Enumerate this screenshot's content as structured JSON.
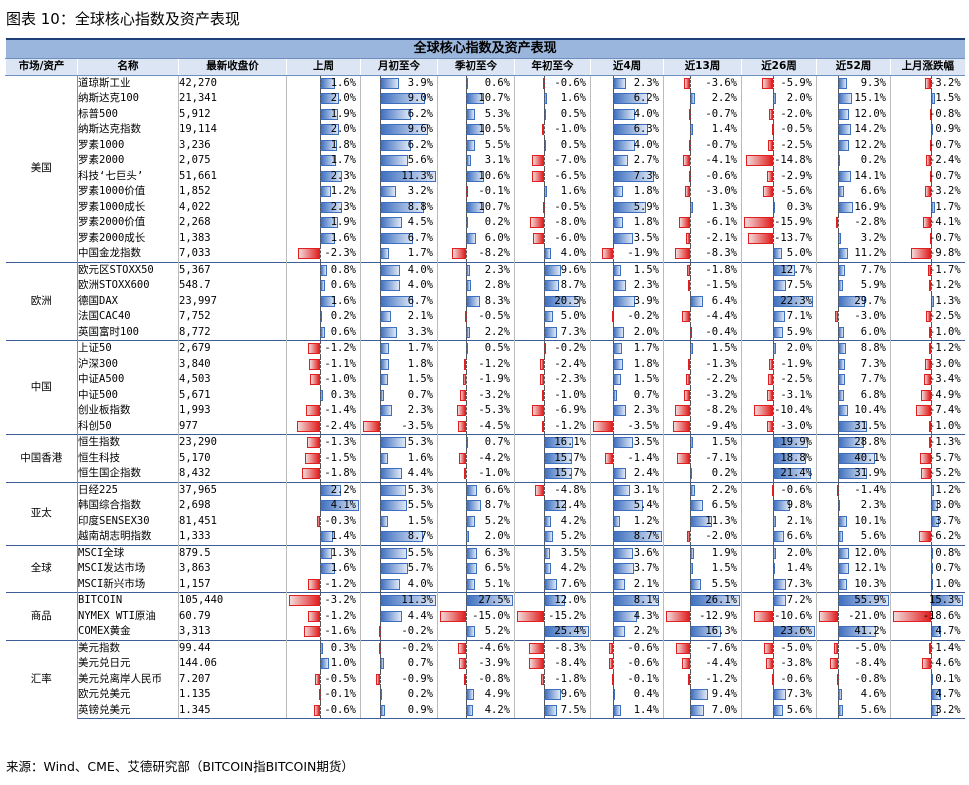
{
  "caption": "图表 10：全球核心指数及资产表现",
  "table_title": "全球核心指数及资产表现",
  "headers": [
    "市场/资产",
    "名称",
    "最新收盘价",
    "上周",
    "月初至今",
    "季初至今",
    "年初至今",
    "近4周",
    "近13周",
    "近26周",
    "近52周",
    "上月涨跌幅"
  ],
  "groups": [
    {
      "region": "美国",
      "rows": [
        {
          "name": "道琼斯工业",
          "close": "42,270",
          "v": [
            "1.6%",
            "3.9%",
            "0.6%",
            "-0.6%",
            "2.3%",
            "-3.6%",
            "-5.9%",
            "9.3%",
            "-3.2%"
          ]
        },
        {
          "name": "纳斯达克100",
          "close": "21,341",
          "v": [
            "2.0%",
            "9.0%",
            "10.7%",
            "1.6%",
            "6.2%",
            "2.2%",
            "2.0%",
            "15.1%",
            "1.5%"
          ]
        },
        {
          "name": "标普500",
          "close": "5,912",
          "v": [
            "1.9%",
            "6.2%",
            "5.3%",
            "0.5%",
            "4.0%",
            "-0.7%",
            "-2.0%",
            "12.0%",
            "-0.8%"
          ]
        },
        {
          "name": "纳斯达克指数",
          "close": "19,114",
          "v": [
            "2.0%",
            "9.6%",
            "10.5%",
            "-1.0%",
            "6.3%",
            "1.4%",
            "-0.5%",
            "14.2%",
            "0.9%"
          ]
        },
        {
          "name": "罗素1000",
          "close": "3,236",
          "v": [
            "1.8%",
            "6.2%",
            "5.5%",
            "0.5%",
            "4.0%",
            "-0.7%",
            "-2.5%",
            "12.2%",
            "-0.7%"
          ]
        },
        {
          "name": "罗素2000",
          "close": "2,075",
          "v": [
            "1.7%",
            "5.6%",
            "3.1%",
            "-7.0%",
            "2.7%",
            "-4.1%",
            "-14.8%",
            "0.2%",
            "-2.4%"
          ]
        },
        {
          "name": "科技‘七巨头’",
          "close": "51,661",
          "v": [
            "2.3%",
            "11.3%",
            "10.6%",
            "-6.5%",
            "7.3%",
            "-0.6%",
            "-2.9%",
            "14.1%",
            "-0.7%"
          ]
        },
        {
          "name": "罗素1000价值",
          "close": "1,852",
          "v": [
            "1.2%",
            "3.2%",
            "-0.1%",
            "1.6%",
            "1.8%",
            "-3.0%",
            "-5.6%",
            "6.6%",
            "-3.2%"
          ]
        },
        {
          "name": "罗素1000成长",
          "close": "4,022",
          "v": [
            "2.3%",
            "8.8%",
            "10.7%",
            "-0.5%",
            "5.9%",
            "1.3%",
            "0.3%",
            "16.9%",
            "1.7%"
          ]
        },
        {
          "name": "罗素2000价值",
          "close": "2,268",
          "v": [
            "1.9%",
            "4.5%",
            "0.2%",
            "-8.0%",
            "1.8%",
            "-6.1%",
            "-15.9%",
            "-2.8%",
            "-4.1%"
          ]
        },
        {
          "name": "罗素2000成长",
          "close": "1,383",
          "v": [
            "1.6%",
            "6.7%",
            "6.0%",
            "-6.0%",
            "3.5%",
            "-2.1%",
            "-13.7%",
            "3.2%",
            "-0.7%"
          ]
        },
        {
          "name": "中国金龙指数",
          "close": "7,033",
          "v": [
            "-2.3%",
            "1.7%",
            "-8.2%",
            "4.0%",
            "-1.9%",
            "-8.3%",
            "5.0%",
            "11.2%",
            "-9.8%"
          ]
        }
      ]
    },
    {
      "region": "欧洲",
      "rows": [
        {
          "name": "欧元区STOXX50",
          "close": "5,367",
          "v": [
            "0.8%",
            "4.0%",
            "2.3%",
            "9.6%",
            "1.5%",
            "-1.8%",
            "12.7%",
            "7.7%",
            "-1.7%"
          ]
        },
        {
          "name": "欧洲STOXX600",
          "close": "548.7",
          "v": [
            "0.6%",
            "4.0%",
            "2.8%",
            "8.7%",
            "2.3%",
            "-1.5%",
            "7.5%",
            "5.9%",
            "-1.2%"
          ]
        },
        {
          "name": "德国DAX",
          "close": "23,997",
          "v": [
            "1.6%",
            "6.7%",
            "8.3%",
            "20.5%",
            "3.9%",
            "6.4%",
            "22.3%",
            "29.7%",
            "1.3%"
          ]
        },
        {
          "name": "法国CAC40",
          "close": "7,752",
          "v": [
            "0.2%",
            "2.1%",
            "-0.5%",
            "5.0%",
            "-0.2%",
            "-4.4%",
            "7.1%",
            "-3.0%",
            "-2.5%"
          ]
        },
        {
          "name": "英国富时100",
          "close": "8,772",
          "v": [
            "0.6%",
            "3.3%",
            "2.2%",
            "7.3%",
            "2.0%",
            "-0.4%",
            "5.9%",
            "6.0%",
            "-1.0%"
          ]
        }
      ]
    },
    {
      "region": "中国",
      "rows": [
        {
          "name": "上证50",
          "close": "2,679",
          "v": [
            "-1.2%",
            "1.7%",
            "0.5%",
            "-0.2%",
            "1.7%",
            "1.5%",
            "2.0%",
            "8.8%",
            "-1.2%"
          ]
        },
        {
          "name": "沪深300",
          "close": "3,840",
          "v": [
            "-1.1%",
            "1.8%",
            "-1.2%",
            "-2.4%",
            "1.8%",
            "-1.3%",
            "-1.9%",
            "7.3%",
            "-3.0%"
          ]
        },
        {
          "name": "中证A500",
          "close": "4,503",
          "v": [
            "-1.0%",
            "1.5%",
            "-1.9%",
            "-2.3%",
            "1.5%",
            "-2.2%",
            "-2.5%",
            "7.7%",
            "-3.4%"
          ]
        },
        {
          "name": "中证500",
          "close": "5,671",
          "v": [
            "0.3%",
            "0.7%",
            "-3.2%",
            "-1.0%",
            "0.7%",
            "-3.2%",
            "-3.1%",
            "6.8%",
            "-4.9%"
          ]
        },
        {
          "name": "创业板指数",
          "close": "1,993",
          "v": [
            "-1.4%",
            "2.3%",
            "-5.3%",
            "-6.9%",
            "2.3%",
            "-8.2%",
            "-10.4%",
            "10.4%",
            "-7.4%"
          ]
        },
        {
          "name": "科创50",
          "close": "977",
          "v": [
            "-2.4%",
            "-3.5%",
            "-4.5%",
            "-1.2%",
            "-3.5%",
            "-9.4%",
            "-3.0%",
            "31.5%",
            "-1.0%"
          ]
        }
      ]
    },
    {
      "region": "中国香港",
      "rows": [
        {
          "name": "恒生指数",
          "close": "23,290",
          "v": [
            "-1.3%",
            "5.3%",
            "0.7%",
            "16.1%",
            "3.5%",
            "1.5%",
            "19.9%",
            "28.8%",
            "-1.3%"
          ]
        },
        {
          "name": "恒生科技",
          "close": "5,170",
          "v": [
            "-1.5%",
            "1.6%",
            "-4.2%",
            "15.7%",
            "-1.4%",
            "-7.1%",
            "18.8%",
            "40.1%",
            "-5.7%"
          ]
        },
        {
          "name": "恒生国企指数",
          "close": "8,432",
          "v": [
            "-1.8%",
            "4.4%",
            "-1.0%",
            "15.7%",
            "2.4%",
            "0.2%",
            "21.4%",
            "31.9%",
            "-5.2%"
          ]
        }
      ]
    },
    {
      "region": "亚太",
      "rows": [
        {
          "name": "日经225",
          "close": "37,965",
          "v": [
            "2.2%",
            "5.3%",
            "6.6%",
            "-4.8%",
            "3.1%",
            "2.2%",
            "-0.6%",
            "-1.4%",
            "1.2%"
          ]
        },
        {
          "name": "韩国综合指数",
          "close": "2,698",
          "v": [
            "4.1%",
            "5.5%",
            "8.7%",
            "12.4%",
            "5.4%",
            "6.5%",
            "9.8%",
            "2.3%",
            "3.0%"
          ]
        },
        {
          "name": "印度SENSEX30",
          "close": "81,451",
          "v": [
            "-0.3%",
            "1.5%",
            "5.2%",
            "4.2%",
            "1.2%",
            "11.3%",
            "2.1%",
            "10.1%",
            "3.7%"
          ]
        },
        {
          "name": "越南胡志明指数",
          "close": "1,333",
          "v": [
            "1.4%",
            "8.7%",
            "2.0%",
            "5.2%",
            "8.7%",
            "-2.0%",
            "6.6%",
            "5.6%",
            "-6.2%"
          ]
        }
      ]
    },
    {
      "region": "全球",
      "rows": [
        {
          "name": "MSCI全球",
          "close": "879.5",
          "v": [
            "1.3%",
            "5.5%",
            "6.3%",
            "3.5%",
            "3.6%",
            "1.9%",
            "2.0%",
            "12.0%",
            "0.8%"
          ]
        },
        {
          "name": "MSCI发达市场",
          "close": "3,863",
          "v": [
            "1.6%",
            "5.7%",
            "6.5%",
            "4.2%",
            "3.7%",
            "1.5%",
            "1.4%",
            "12.1%",
            "0.7%"
          ]
        },
        {
          "name": "MSCI新兴市场",
          "close": "1,157",
          "v": [
            "-1.2%",
            "4.0%",
            "5.1%",
            "7.6%",
            "2.1%",
            "5.5%",
            "7.3%",
            "10.3%",
            "1.0%"
          ]
        }
      ]
    },
    {
      "region": "商品",
      "rows": [
        {
          "name": "BITCOIN",
          "close": "105,440",
          "v": [
            "-3.2%",
            "11.3%",
            "27.5%",
            "12.0%",
            "8.1%",
            "26.1%",
            "7.2%",
            "55.9%",
            "15.3%"
          ]
        },
        {
          "name": "NYMEX WTI原油",
          "close": "60.79",
          "v": [
            "-1.2%",
            "4.4%",
            "-15.0%",
            "-15.2%",
            "4.3%",
            "-12.9%",
            "-10.6%",
            "-21.0%",
            "-18.6%"
          ]
        },
        {
          "name": "COMEX黄金",
          "close": "3,313",
          "v": [
            "-1.6%",
            "-0.2%",
            "5.2%",
            "25.4%",
            "2.2%",
            "16.3%",
            "23.6%",
            "41.2%",
            "4.7%"
          ]
        }
      ]
    },
    {
      "region": "汇率",
      "rows": [
        {
          "name": "美元指数",
          "close": "99.44",
          "v": [
            "0.3%",
            "-0.2%",
            "-4.6%",
            "-8.3%",
            "-0.6%",
            "-7.6%",
            "-5.0%",
            "-5.0%",
            "-1.4%"
          ]
        },
        {
          "name": "美元兑日元",
          "close": "144.06",
          "v": [
            "1.0%",
            "0.7%",
            "-3.9%",
            "-8.4%",
            "-0.6%",
            "-4.4%",
            "-3.8%",
            "-8.4%",
            "-4.6%"
          ]
        },
        {
          "name": "美元兑离岸人民币",
          "close": "7.207",
          "v": [
            "-0.5%",
            "-0.9%",
            "-0.8%",
            "-1.8%",
            "-0.1%",
            "-1.2%",
            "-0.6%",
            "-0.8%",
            "0.1%"
          ]
        },
        {
          "name": "欧元兑美元",
          "close": "1.135",
          "v": [
            "-0.1%",
            "0.2%",
            "4.9%",
            "9.6%",
            "0.4%",
            "9.4%",
            "7.3%",
            "4.6%",
            "4.7%"
          ]
        },
        {
          "name": "英镑兑美元",
          "close": "1.345",
          "v": [
            "-0.6%",
            "0.9%",
            "4.2%",
            "7.5%",
            "1.4%",
            "7.0%",
            "5.6%",
            "5.6%",
            "3.2%"
          ]
        }
      ]
    }
  ],
  "source": "来源：Wind、CME、艾德研究部（BITCOIN指BITCOIN期货）"
}
